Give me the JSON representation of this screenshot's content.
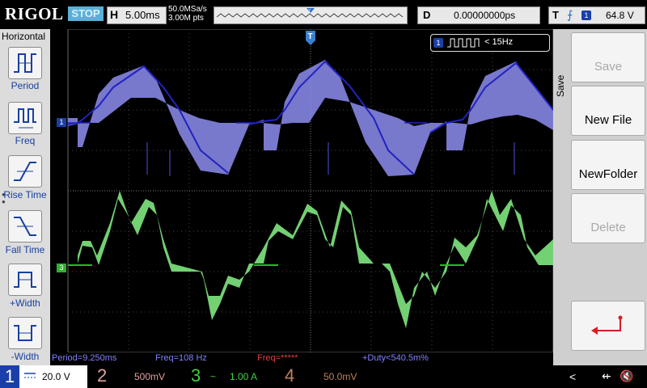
{
  "topbar": {
    "brand": "RIGOL",
    "run_status": "STOP",
    "timebase_label": "H",
    "timebase_value": "5.00ms",
    "sample_rate": "50.0MSa/s",
    "memory_depth": "3.00M pts",
    "delay_label": "D",
    "delay_value": "0.00000000ps",
    "trigger_label": "T",
    "trigger_source": "1",
    "trigger_level": "64.8 V"
  },
  "left_menu": {
    "title": "Horizontal",
    "items": [
      {
        "label": "Period",
        "icon": "period-icon"
      },
      {
        "label": "Freq",
        "icon": "freq-icon"
      },
      {
        "label": "Rise Time",
        "icon": "rise-time-icon"
      },
      {
        "label": "Fall Time",
        "icon": "fall-time-icon"
      },
      {
        "label": "+Width",
        "icon": "pos-width-icon"
      },
      {
        "label": "-Width",
        "icon": "neg-width-icon"
      }
    ]
  },
  "right_menu": {
    "title": "Save",
    "buttons": [
      {
        "label": "Save",
        "enabled": false
      },
      {
        "label": "New File",
        "enabled": true
      },
      {
        "label": "NewFolder",
        "enabled": true
      },
      {
        "label": "Delete",
        "enabled": false
      },
      {
        "label": "",
        "icon": "return-arrow-icon",
        "enabled": true
      }
    ]
  },
  "waveform": {
    "freq_badge_channel": "1",
    "freq_badge_text": "< 15Hz",
    "ch1_marker": "1",
    "ch3_marker": "3",
    "ch1_color": "#3b3bd6",
    "ch3_color": "#5de05d"
  },
  "measurements": {
    "period": "Period=9.250ms",
    "freq": "Freq=108 Hz",
    "freq_ch": "Freq=*****",
    "duty": "+Duty<540.5m%"
  },
  "channels": [
    {
      "num": "1",
      "value": "20.0 V",
      "active": true,
      "color": "#ffff00"
    },
    {
      "num": "2",
      "value": "500mV",
      "active": false,
      "color": "#e0a0a0"
    },
    {
      "num": "3",
      "coupling": "~",
      "value": "1.00 A",
      "active": false,
      "color": "#40d040"
    },
    {
      "num": "4",
      "value": "50.0mV",
      "active": false,
      "color": "#c08060"
    }
  ]
}
